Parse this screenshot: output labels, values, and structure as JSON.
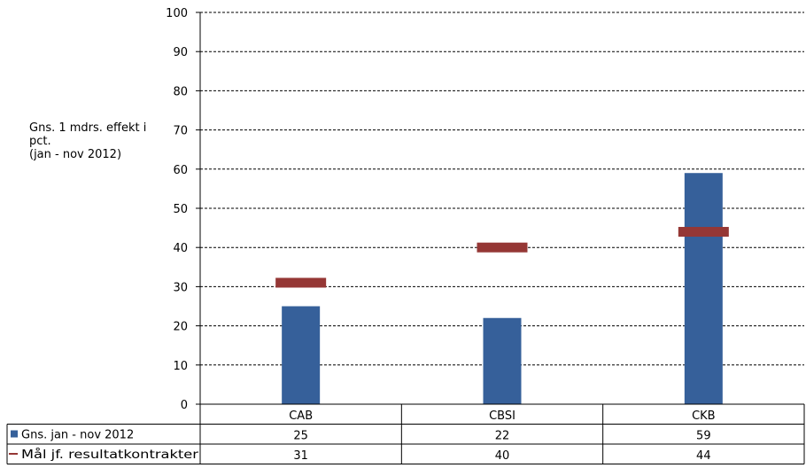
{
  "chart_data": {
    "type": "bar",
    "ylabel": "Gns. 1 mdrs. effekt i pct.\n(jan - nov 2012)",
    "ylim": [
      0,
      100
    ],
    "yticks": [
      0,
      10,
      20,
      30,
      40,
      50,
      60,
      70,
      80,
      90,
      100
    ],
    "grid": true,
    "categories": [
      "CAB",
      "CBSI",
      "CKB"
    ],
    "series": [
      {
        "name": "Gns. jan - nov 2012",
        "kind": "bar",
        "color": "#36609A",
        "values": [
          25,
          22,
          59
        ],
        "labels": [
          "25",
          "22",
          "59"
        ]
      },
      {
        "name": "Mål jf. resultatkontrakter",
        "kind": "target-marker",
        "color": "#953735",
        "values": [
          31,
          40,
          44
        ],
        "labels": [
          "31",
          "40",
          "44"
        ]
      }
    ]
  }
}
